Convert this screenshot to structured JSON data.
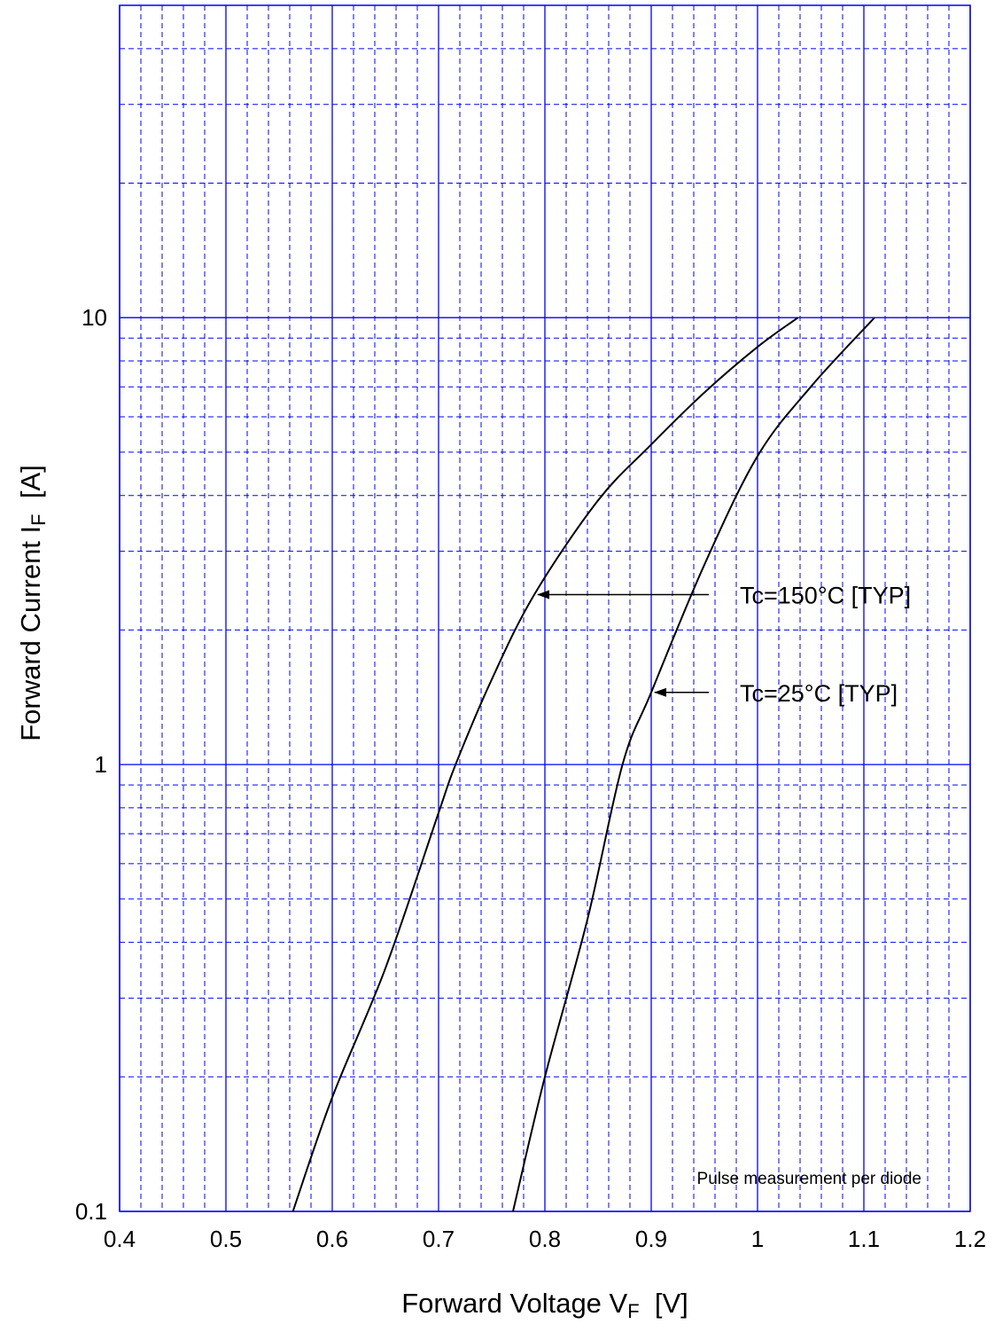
{
  "chart_data": {
    "type": "line",
    "xlabel": {
      "main": "Forward Voltage  V",
      "sub": "F",
      "unit": "  [V]"
    },
    "ylabel": {
      "main": "Forward Current  I",
      "sub": "F",
      "unit": "  [A]"
    },
    "xlim": [
      0.4,
      1.2
    ],
    "ylim": [
      0.1,
      50
    ],
    "yscale": "log",
    "grid": true,
    "x_ticks": [
      "0.4",
      "0.5",
      "0.6",
      "0.7",
      "0.8",
      "0.9",
      "1",
      "1.1",
      "1.2"
    ],
    "y_ticks": [
      {
        "value": 0.1,
        "label": "0.1"
      },
      {
        "value": 1,
        "label": "1"
      },
      {
        "value": 10,
        "label": "10"
      }
    ],
    "series": [
      {
        "name": "Tc=150°C [TYP]",
        "points": [
          [
            0.563,
            0.1
          ],
          [
            0.6,
            0.18
          ],
          [
            0.65,
            0.35
          ],
          [
            0.7,
            0.78
          ],
          [
            0.716,
            1.0
          ],
          [
            0.75,
            1.55
          ],
          [
            0.79,
            2.4
          ],
          [
            0.85,
            3.9
          ],
          [
            0.9,
            5.2
          ],
          [
            0.95,
            6.8
          ],
          [
            1.0,
            8.6
          ],
          [
            1.038,
            10.0
          ]
        ]
      },
      {
        "name": "Tc=25°C [TYP]",
        "points": [
          [
            0.77,
            0.1
          ],
          [
            0.8,
            0.2
          ],
          [
            0.84,
            0.45
          ],
          [
            0.873,
            1.0
          ],
          [
            0.9,
            1.45
          ],
          [
            0.95,
            2.8
          ],
          [
            1.0,
            4.9
          ],
          [
            1.05,
            7.0
          ],
          [
            1.11,
            10.0
          ]
        ]
      }
    ],
    "annotations": [
      {
        "text": "Tc=150°C [TYP]",
        "arrow_to": [
          0.79,
          2.4
        ]
      },
      {
        "text": "Tc=25°C [TYP]",
        "arrow_to": [
          0.9,
          1.45
        ]
      }
    ],
    "note": "Pulse measurement per diode"
  }
}
